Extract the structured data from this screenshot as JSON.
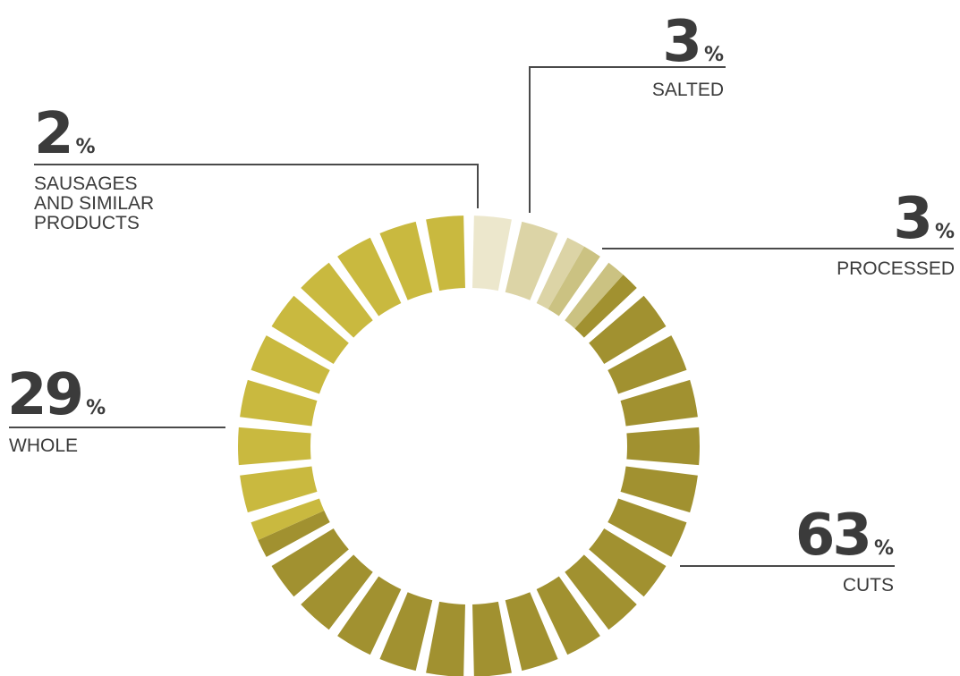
{
  "chart_data": {
    "type": "pie",
    "style": "segmented-donut",
    "segment_count": 30,
    "slices": [
      {
        "key": "sausages",
        "value": 2,
        "percent_symbol": "%",
        "label": "SAUSAGES\nAND SIMILAR\nPRODUCTS",
        "color": "#ece7cc",
        "segments": 1
      },
      {
        "key": "salted",
        "value": 3,
        "percent_symbol": "%",
        "label": "SALTED",
        "color": "#dcd4a6",
        "segments": 1.5
      },
      {
        "key": "processed",
        "value": 3,
        "percent_symbol": "%",
        "label": "PROCESSED",
        "color": "#cbc282",
        "segments": 1
      },
      {
        "key": "cuts",
        "value": 63,
        "percent_symbol": "%",
        "label": "CUTS",
        "color": "#a19130",
        "segments": 17
      },
      {
        "key": "whole",
        "value": 29,
        "percent_symbol": "%",
        "label": "WHOLE",
        "color": "#c9b93f",
        "segments": 9.5
      }
    ]
  }
}
